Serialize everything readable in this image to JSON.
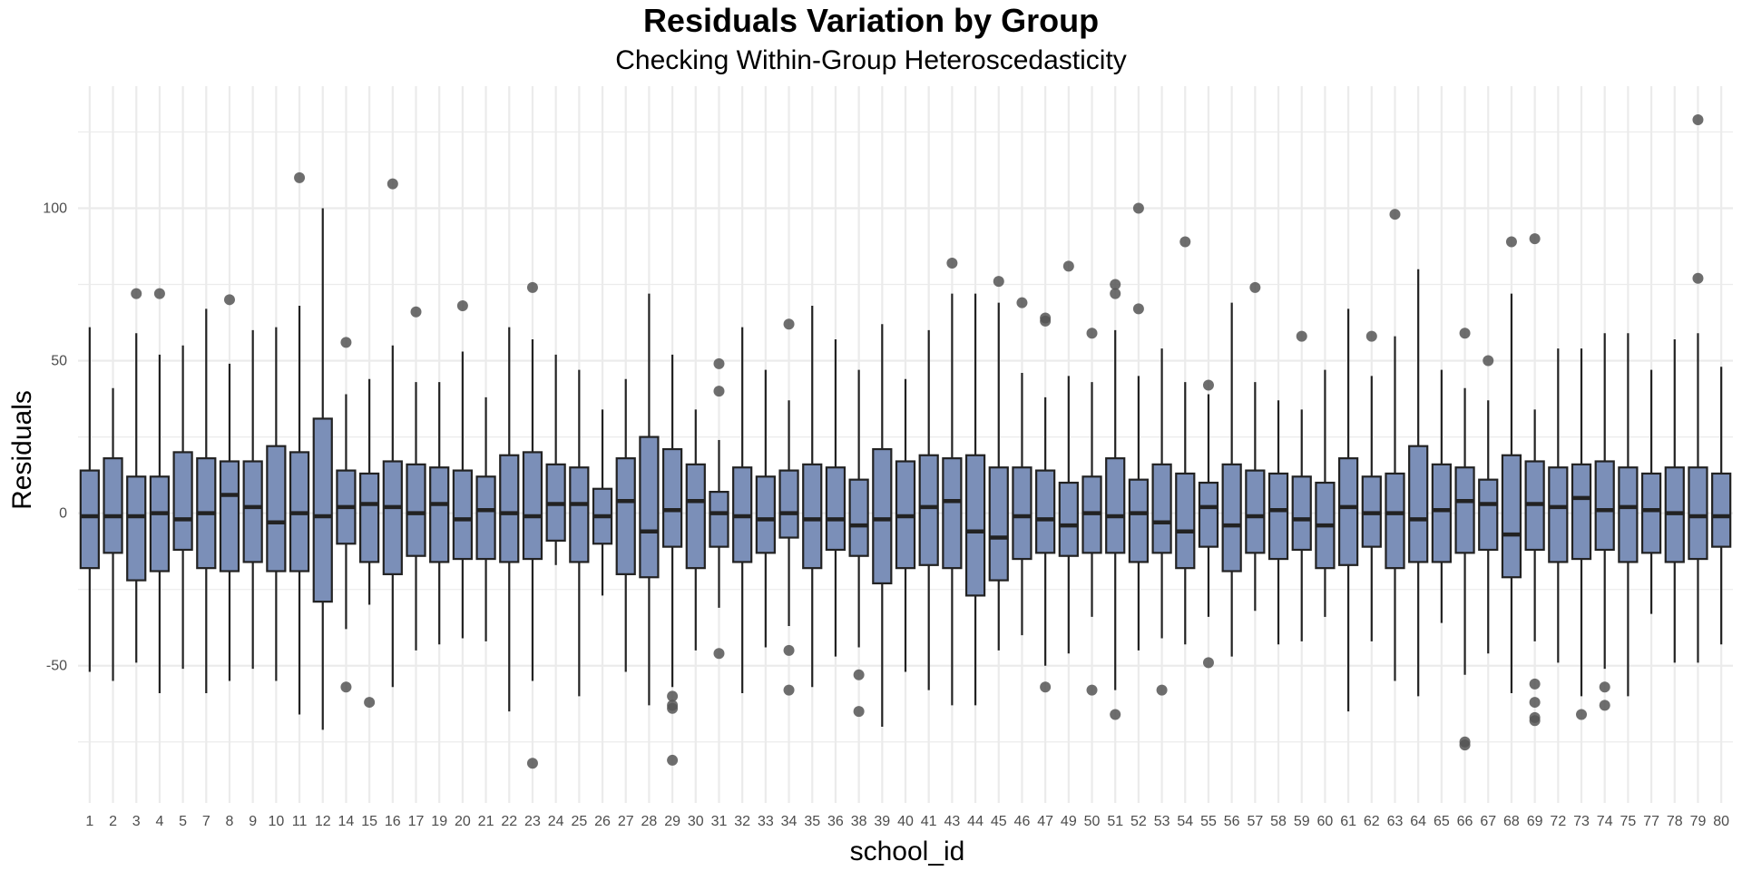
{
  "chart_data": {
    "type": "boxplot",
    "title": "Residuals Variation by Group",
    "subtitle": "Checking Within-Group Heteroscedasticity",
    "xlabel": "school_id",
    "ylabel": "Residuals",
    "ylim": [
      -95,
      140
    ],
    "yticks": [
      -50,
      0,
      50,
      100
    ],
    "ytick_labels": [
      "-50",
      "0",
      "50",
      "100"
    ],
    "grid": true,
    "colors": {
      "box_fill": "#7b8fb8",
      "box_stroke": "#222222",
      "outlier": "#555555",
      "grid": "#ebebeb"
    },
    "groups": [
      {
        "label": "1",
        "q1": -18,
        "median": -1,
        "q3": 14,
        "lo": -52,
        "hi": 61,
        "outliers": []
      },
      {
        "label": "2",
        "q1": -13,
        "median": -1,
        "q3": 18,
        "lo": -55,
        "hi": 41,
        "outliers": []
      },
      {
        "label": "3",
        "q1": -22,
        "median": -1,
        "q3": 12,
        "lo": -49,
        "hi": 59,
        "outliers": [
          72
        ]
      },
      {
        "label": "4",
        "q1": -19,
        "median": 0,
        "q3": 12,
        "lo": -59,
        "hi": 52,
        "outliers": [
          72
        ]
      },
      {
        "label": "5",
        "q1": -12,
        "median": -2,
        "q3": 20,
        "lo": -51,
        "hi": 55,
        "outliers": []
      },
      {
        "label": "7",
        "q1": -18,
        "median": 0,
        "q3": 18,
        "lo": -59,
        "hi": 67,
        "outliers": []
      },
      {
        "label": "8",
        "q1": -19,
        "median": 6,
        "q3": 17,
        "lo": -55,
        "hi": 49,
        "outliers": [
          70
        ]
      },
      {
        "label": "9",
        "q1": -16,
        "median": 2,
        "q3": 17,
        "lo": -51,
        "hi": 60,
        "outliers": []
      },
      {
        "label": "10",
        "q1": -19,
        "median": -3,
        "q3": 22,
        "lo": -55,
        "hi": 61,
        "outliers": []
      },
      {
        "label": "11",
        "q1": -19,
        "median": 0,
        "q3": 20,
        "lo": -66,
        "hi": 68,
        "outliers": [
          110
        ]
      },
      {
        "label": "12",
        "q1": -29,
        "median": -1,
        "q3": 31,
        "lo": -71,
        "hi": 100,
        "outliers": []
      },
      {
        "label": "14",
        "q1": -10,
        "median": 2,
        "q3": 14,
        "lo": -38,
        "hi": 39,
        "outliers": [
          56,
          -57
        ]
      },
      {
        "label": "15",
        "q1": -16,
        "median": 3,
        "q3": 13,
        "lo": -30,
        "hi": 44,
        "outliers": [
          -62
        ]
      },
      {
        "label": "16",
        "q1": -20,
        "median": 2,
        "q3": 17,
        "lo": -57,
        "hi": 55,
        "outliers": [
          108
        ]
      },
      {
        "label": "17",
        "q1": -14,
        "median": 0,
        "q3": 16,
        "lo": -45,
        "hi": 43,
        "outliers": [
          66
        ]
      },
      {
        "label": "19",
        "q1": -16,
        "median": 3,
        "q3": 15,
        "lo": -43,
        "hi": 43,
        "outliers": []
      },
      {
        "label": "20",
        "q1": -15,
        "median": -2,
        "q3": 14,
        "lo": -41,
        "hi": 53,
        "outliers": [
          68
        ]
      },
      {
        "label": "21",
        "q1": -15,
        "median": 1,
        "q3": 12,
        "lo": -42,
        "hi": 38,
        "outliers": []
      },
      {
        "label": "22",
        "q1": -16,
        "median": 0,
        "q3": 19,
        "lo": -65,
        "hi": 61,
        "outliers": []
      },
      {
        "label": "23",
        "q1": -15,
        "median": -1,
        "q3": 20,
        "lo": -55,
        "hi": 57,
        "outliers": [
          74,
          -82
        ]
      },
      {
        "label": "24",
        "q1": -9,
        "median": 3,
        "q3": 16,
        "lo": -17,
        "hi": 52,
        "outliers": []
      },
      {
        "label": "25",
        "q1": -16,
        "median": 3,
        "q3": 15,
        "lo": -60,
        "hi": 47,
        "outliers": []
      },
      {
        "label": "26",
        "q1": -10,
        "median": -1,
        "q3": 8,
        "lo": -27,
        "hi": 34,
        "outliers": []
      },
      {
        "label": "27",
        "q1": -20,
        "median": 4,
        "q3": 18,
        "lo": -52,
        "hi": 44,
        "outliers": []
      },
      {
        "label": "28",
        "q1": -21,
        "median": -6,
        "q3": 25,
        "lo": -63,
        "hi": 72,
        "outliers": []
      },
      {
        "label": "29",
        "q1": -11,
        "median": 1,
        "q3": 21,
        "lo": -57,
        "hi": 52,
        "outliers": [
          -60,
          -63,
          -64,
          -81
        ]
      },
      {
        "label": "30",
        "q1": -18,
        "median": 4,
        "q3": 16,
        "lo": -45,
        "hi": 34,
        "outliers": []
      },
      {
        "label": "31",
        "q1": -11,
        "median": 0,
        "q3": 7,
        "lo": -31,
        "hi": 24,
        "outliers": [
          49,
          40,
          -46
        ]
      },
      {
        "label": "32",
        "q1": -16,
        "median": -1,
        "q3": 15,
        "lo": -59,
        "hi": 61,
        "outliers": []
      },
      {
        "label": "33",
        "q1": -13,
        "median": -2,
        "q3": 12,
        "lo": -44,
        "hi": 47,
        "outliers": []
      },
      {
        "label": "34",
        "q1": -8,
        "median": 0,
        "q3": 14,
        "lo": -37,
        "hi": 37,
        "outliers": [
          62,
          -45,
          -58
        ]
      },
      {
        "label": "35",
        "q1": -18,
        "median": -2,
        "q3": 16,
        "lo": -57,
        "hi": 68,
        "outliers": []
      },
      {
        "label": "36",
        "q1": -12,
        "median": -2,
        "q3": 15,
        "lo": -47,
        "hi": 57,
        "outliers": []
      },
      {
        "label": "38",
        "q1": -14,
        "median": -4,
        "q3": 11,
        "lo": -44,
        "hi": 47,
        "outliers": [
          -53,
          -65
        ]
      },
      {
        "label": "39",
        "q1": -23,
        "median": -2,
        "q3": 21,
        "lo": -70,
        "hi": 62,
        "outliers": []
      },
      {
        "label": "40",
        "q1": -18,
        "median": -1,
        "q3": 17,
        "lo": -52,
        "hi": 44,
        "outliers": []
      },
      {
        "label": "41",
        "q1": -17,
        "median": 2,
        "q3": 19,
        "lo": -58,
        "hi": 60,
        "outliers": []
      },
      {
        "label": "43",
        "q1": -18,
        "median": 4,
        "q3": 18,
        "lo": -63,
        "hi": 72,
        "outliers": [
          82
        ]
      },
      {
        "label": "44",
        "q1": -27,
        "median": -6,
        "q3": 19,
        "lo": -63,
        "hi": 72,
        "outliers": []
      },
      {
        "label": "45",
        "q1": -22,
        "median": -8,
        "q3": 15,
        "lo": -45,
        "hi": 69,
        "outliers": [
          76
        ]
      },
      {
        "label": "46",
        "q1": -15,
        "median": -1,
        "q3": 15,
        "lo": -40,
        "hi": 46,
        "outliers": [
          69
        ]
      },
      {
        "label": "47",
        "q1": -13,
        "median": -2,
        "q3": 14,
        "lo": -50,
        "hi": 38,
        "outliers": [
          64,
          63,
          -57
        ]
      },
      {
        "label": "49",
        "q1": -14,
        "median": -4,
        "q3": 10,
        "lo": -46,
        "hi": 45,
        "outliers": [
          81
        ]
      },
      {
        "label": "50",
        "q1": -13,
        "median": 0,
        "q3": 12,
        "lo": -34,
        "hi": 43,
        "outliers": [
          59,
          -58
        ]
      },
      {
        "label": "51",
        "q1": -13,
        "median": -1,
        "q3": 18,
        "lo": -58,
        "hi": 60,
        "outliers": [
          75,
          72,
          -66
        ]
      },
      {
        "label": "52",
        "q1": -16,
        "median": 0,
        "q3": 11,
        "lo": -45,
        "hi": 45,
        "outliers": [
          100,
          67
        ]
      },
      {
        "label": "53",
        "q1": -13,
        "median": -3,
        "q3": 16,
        "lo": -41,
        "hi": 54,
        "outliers": [
          -58
        ]
      },
      {
        "label": "54",
        "q1": -18,
        "median": -6,
        "q3": 13,
        "lo": -43,
        "hi": 43,
        "outliers": [
          89
        ]
      },
      {
        "label": "55",
        "q1": -11,
        "median": 2,
        "q3": 10,
        "lo": -34,
        "hi": 39,
        "outliers": [
          42,
          -49
        ]
      },
      {
        "label": "56",
        "q1": -19,
        "median": -4,
        "q3": 16,
        "lo": -47,
        "hi": 69,
        "outliers": []
      },
      {
        "label": "57",
        "q1": -13,
        "median": -1,
        "q3": 14,
        "lo": -32,
        "hi": 43,
        "outliers": [
          74
        ]
      },
      {
        "label": "58",
        "q1": -15,
        "median": 1,
        "q3": 13,
        "lo": -43,
        "hi": 37,
        "outliers": []
      },
      {
        "label": "59",
        "q1": -12,
        "median": -2,
        "q3": 12,
        "lo": -42,
        "hi": 34,
        "outliers": [
          58
        ]
      },
      {
        "label": "60",
        "q1": -18,
        "median": -4,
        "q3": 10,
        "lo": -34,
        "hi": 47,
        "outliers": []
      },
      {
        "label": "61",
        "q1": -17,
        "median": 2,
        "q3": 18,
        "lo": -65,
        "hi": 67,
        "outliers": []
      },
      {
        "label": "62",
        "q1": -11,
        "median": 0,
        "q3": 12,
        "lo": -42,
        "hi": 45,
        "outliers": [
          58
        ]
      },
      {
        "label": "63",
        "q1": -18,
        "median": 0,
        "q3": 13,
        "lo": -55,
        "hi": 58,
        "outliers": [
          98
        ]
      },
      {
        "label": "64",
        "q1": -16,
        "median": -2,
        "q3": 22,
        "lo": -60,
        "hi": 80,
        "outliers": []
      },
      {
        "label": "65",
        "q1": -16,
        "median": 1,
        "q3": 16,
        "lo": -36,
        "hi": 47,
        "outliers": []
      },
      {
        "label": "66",
        "q1": -13,
        "median": 4,
        "q3": 15,
        "lo": -53,
        "hi": 41,
        "outliers": [
          59,
          -75,
          -76
        ]
      },
      {
        "label": "67",
        "q1": -12,
        "median": 3,
        "q3": 11,
        "lo": -46,
        "hi": 37,
        "outliers": [
          50
        ]
      },
      {
        "label": "68",
        "q1": -21,
        "median": -7,
        "q3": 19,
        "lo": -59,
        "hi": 72,
        "outliers": [
          89
        ]
      },
      {
        "label": "69",
        "q1": -12,
        "median": 3,
        "q3": 17,
        "lo": -42,
        "hi": 34,
        "outliers": [
          90,
          -56,
          -62,
          -67,
          -68
        ]
      },
      {
        "label": "72",
        "q1": -16,
        "median": 2,
        "q3": 15,
        "lo": -49,
        "hi": 54,
        "outliers": []
      },
      {
        "label": "73",
        "q1": -15,
        "median": 5,
        "q3": 16,
        "lo": -60,
        "hi": 54,
        "outliers": [
          -66
        ]
      },
      {
        "label": "74",
        "q1": -12,
        "median": 1,
        "q3": 17,
        "lo": -51,
        "hi": 59,
        "outliers": [
          -57,
          -63
        ]
      },
      {
        "label": "75",
        "q1": -16,
        "median": 2,
        "q3": 15,
        "lo": -60,
        "hi": 59,
        "outliers": []
      },
      {
        "label": "77",
        "q1": -13,
        "median": 1,
        "q3": 13,
        "lo": -33,
        "hi": 47,
        "outliers": []
      },
      {
        "label": "78",
        "q1": -16,
        "median": 0,
        "q3": 15,
        "lo": -49,
        "hi": 57,
        "outliers": []
      },
      {
        "label": "79",
        "q1": -15,
        "median": -1,
        "q3": 15,
        "lo": -49,
        "hi": 59,
        "outliers": [
          129,
          77
        ]
      },
      {
        "label": "80",
        "q1": -11,
        "median": -1,
        "q3": 13,
        "lo": -43,
        "hi": 48,
        "outliers": []
      }
    ]
  }
}
